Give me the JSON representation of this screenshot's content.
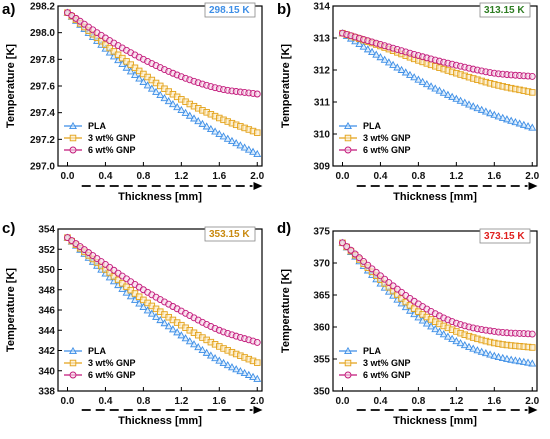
{
  "figure": {
    "x_axis_label": "Thickness [mm]",
    "y_axis_label": "Temperature [K]"
  },
  "legend": [
    "PLA",
    "3 wt% GNP",
    "6 wt% GNP"
  ],
  "colors": {
    "PLA": "#3d8ee6",
    "3 wt% GNP": "#e3a21a",
    "6 wt% GNP": "#c2187a",
    "tag_a": "#3d8ee6",
    "tag_b": "#2e7d22",
    "tag_c": "#c98a10",
    "tag_d": "#e0201f"
  },
  "chart_data": [
    {
      "panel": "a)",
      "type": "scatter",
      "title": "298.15 K",
      "xlabel": "Thickness [mm]",
      "ylabel": "Temperature [K]",
      "xlim": [
        -0.1,
        2.05
      ],
      "ylim": [
        297.0,
        298.2
      ],
      "xticks": [
        "0.0",
        "0.4",
        "0.8",
        "1.2",
        "1.6",
        "2.0"
      ],
      "yticks": [
        "297.0",
        "297.2",
        "297.4",
        "297.6",
        "297.8",
        "298.0",
        "298.2"
      ],
      "legend_position": "bottom-left",
      "series": [
        {
          "name": "PLA",
          "x": [
            0.0,
            0.4,
            0.8,
            1.2,
            1.6,
            2.0
          ],
          "values": [
            298.15,
            297.88,
            297.63,
            297.42,
            297.24,
            297.09
          ]
        },
        {
          "name": "3 wt% GNP",
          "x": [
            0.0,
            0.4,
            0.8,
            1.2,
            1.6,
            2.0
          ],
          "values": [
            298.15,
            297.91,
            297.69,
            297.5,
            297.36,
            297.25
          ]
        },
        {
          "name": "6 wt% GNP",
          "x": [
            0.0,
            0.4,
            0.8,
            1.2,
            1.6,
            2.0
          ],
          "values": [
            298.15,
            297.96,
            297.8,
            297.67,
            297.58,
            297.54
          ]
        }
      ]
    },
    {
      "panel": "b)",
      "type": "scatter",
      "title": "313.15 K",
      "xlabel": "Thickness [mm]",
      "ylabel": "Temperature [K]",
      "xlim": [
        -0.1,
        2.05
      ],
      "ylim": [
        309,
        314
      ],
      "xticks": [
        "0.0",
        "0.4",
        "0.8",
        "1.2",
        "1.6",
        "2.0"
      ],
      "yticks": [
        "309",
        "310",
        "311",
        "312",
        "313",
        "314"
      ],
      "legend_position": "bottom-left",
      "series": [
        {
          "name": "PLA",
          "x": [
            0.0,
            0.4,
            0.8,
            1.2,
            1.6,
            2.0
          ],
          "values": [
            313.15,
            312.4,
            311.7,
            311.1,
            310.6,
            310.2
          ]
        },
        {
          "name": "3 wt% GNP",
          "x": [
            0.0,
            0.4,
            0.8,
            1.2,
            1.6,
            2.0
          ],
          "values": [
            313.15,
            312.75,
            312.3,
            311.9,
            311.55,
            311.3
          ]
        },
        {
          "name": "6 wt% GNP",
          "x": [
            0.0,
            0.4,
            0.8,
            1.2,
            1.6,
            2.0
          ],
          "values": [
            313.15,
            312.8,
            312.45,
            312.15,
            311.9,
            311.8
          ]
        }
      ]
    },
    {
      "panel": "c)",
      "type": "scatter",
      "title": "353.15 K",
      "xlabel": "Thickness [mm]",
      "ylabel": "Temperature [K]",
      "xlim": [
        -0.1,
        2.05
      ],
      "ylim": [
        338,
        354
      ],
      "xticks": [
        "0.0",
        "0.4",
        "0.8",
        "1.2",
        "1.6",
        "2.0"
      ],
      "yticks": [
        "338",
        "340",
        "342",
        "344",
        "346",
        "348",
        "350",
        "352",
        "354"
      ],
      "legend_position": "bottom-left",
      "series": [
        {
          "name": "PLA",
          "x": [
            0.0,
            0.4,
            0.8,
            1.2,
            1.6,
            2.0
          ],
          "values": [
            353.15,
            349.6,
            346.3,
            343.5,
            341.0,
            339.2
          ]
        },
        {
          "name": "3 wt% GNP",
          "x": [
            0.0,
            0.4,
            0.8,
            1.2,
            1.6,
            2.0
          ],
          "values": [
            353.15,
            350.0,
            347.0,
            344.5,
            342.4,
            340.8
          ]
        },
        {
          "name": "6 wt% GNP",
          "x": [
            0.0,
            0.4,
            0.8,
            1.2,
            1.6,
            2.0
          ],
          "values": [
            353.15,
            350.5,
            348.0,
            345.9,
            344.0,
            342.8
          ]
        }
      ]
    },
    {
      "panel": "d)",
      "type": "scatter",
      "title": "373.15 K",
      "xlabel": "Thickness [mm]",
      "ylabel": "Temperature [K]",
      "xlim": [
        -0.1,
        2.05
      ],
      "ylim": [
        350,
        375
      ],
      "xticks": [
        "0.0",
        "0.4",
        "0.8",
        "1.2",
        "1.6",
        "2.0"
      ],
      "yticks": [
        "350",
        "355",
        "360",
        "365",
        "370",
        "375"
      ],
      "legend_position": "bottom-left",
      "series": [
        {
          "name": "PLA",
          "x": [
            0.0,
            0.4,
            0.8,
            1.2,
            1.6,
            2.0
          ],
          "values": [
            373.15,
            366.8,
            361.5,
            357.8,
            355.5,
            354.3
          ]
        },
        {
          "name": "3 wt% GNP",
          "x": [
            0.0,
            0.4,
            0.8,
            1.2,
            1.6,
            2.0
          ],
          "values": [
            373.15,
            367.4,
            362.4,
            359.3,
            357.5,
            356.8
          ]
        },
        {
          "name": "6 wt% GNP",
          "x": [
            0.0,
            0.4,
            0.8,
            1.2,
            1.6,
            2.0
          ],
          "values": [
            373.15,
            368.0,
            363.6,
            360.6,
            359.3,
            358.9
          ]
        }
      ]
    }
  ]
}
